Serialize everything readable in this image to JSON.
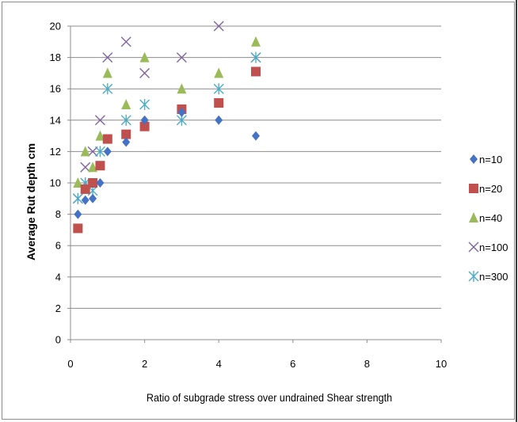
{
  "chart_data": {
    "type": "scatter",
    "title": "",
    "xlabel": "Ratio of subgrade stress over undrained Shear strength",
    "ylabel": "Average Rut depth cm",
    "xlim": [
      0,
      10
    ],
    "ylim": [
      0,
      20
    ],
    "x_ticks": [
      "0",
      "2",
      "4",
      "6",
      "8",
      "10"
    ],
    "y_ticks": [
      "0",
      "2",
      "4",
      "6",
      "8",
      "10",
      "12",
      "14",
      "16",
      "18",
      "20"
    ],
    "grid": "horizontal",
    "legend_position": "right",
    "series": [
      {
        "name": "n=10",
        "marker": "diamond",
        "color": "#4472c4",
        "points": [
          [
            0.2,
            8
          ],
          [
            0.4,
            8.9
          ],
          [
            0.6,
            9
          ],
          [
            0.8,
            10
          ],
          [
            1,
            12
          ],
          [
            1.5,
            12.6
          ],
          [
            2,
            14
          ],
          [
            3,
            14.5
          ],
          [
            4,
            14
          ],
          [
            5,
            13
          ]
        ]
      },
      {
        "name": "n=20",
        "marker": "square",
        "color": "#c0504d",
        "points": [
          [
            0.2,
            7.1
          ],
          [
            0.4,
            9.6
          ],
          [
            0.6,
            10
          ],
          [
            0.8,
            11.1
          ],
          [
            1,
            12.8
          ],
          [
            1.5,
            13.1
          ],
          [
            2,
            13.6
          ],
          [
            3,
            14.7
          ],
          [
            4,
            15.1
          ],
          [
            5,
            17.1
          ]
        ]
      },
      {
        "name": "n=40",
        "marker": "triangle",
        "color": "#9bbb59",
        "points": [
          [
            0.2,
            10
          ],
          [
            0.4,
            12
          ],
          [
            0.6,
            11
          ],
          [
            0.8,
            13
          ],
          [
            1,
            17
          ],
          [
            1.5,
            15
          ],
          [
            2,
            18
          ],
          [
            3,
            16
          ],
          [
            4,
            17
          ],
          [
            5,
            19
          ]
        ]
      },
      {
        "name": "n=100",
        "marker": "x",
        "color": "#8064a2",
        "points": [
          [
            0.2,
            9
          ],
          [
            0.4,
            11
          ],
          [
            0.6,
            12
          ],
          [
            0.8,
            14
          ],
          [
            1,
            18
          ],
          [
            1.5,
            19
          ],
          [
            2,
            17
          ],
          [
            3,
            18
          ],
          [
            4,
            20
          ],
          [
            5,
            18
          ]
        ]
      },
      {
        "name": "n=300",
        "marker": "asterisk",
        "color": "#4bacc6",
        "points": [
          [
            0.2,
            9
          ],
          [
            0.4,
            10
          ],
          [
            0.6,
            9.5
          ],
          [
            0.8,
            12
          ],
          [
            1,
            16
          ],
          [
            1.5,
            14
          ],
          [
            2,
            15
          ],
          [
            3,
            14
          ],
          [
            4,
            16
          ],
          [
            5,
            18
          ]
        ]
      }
    ]
  }
}
